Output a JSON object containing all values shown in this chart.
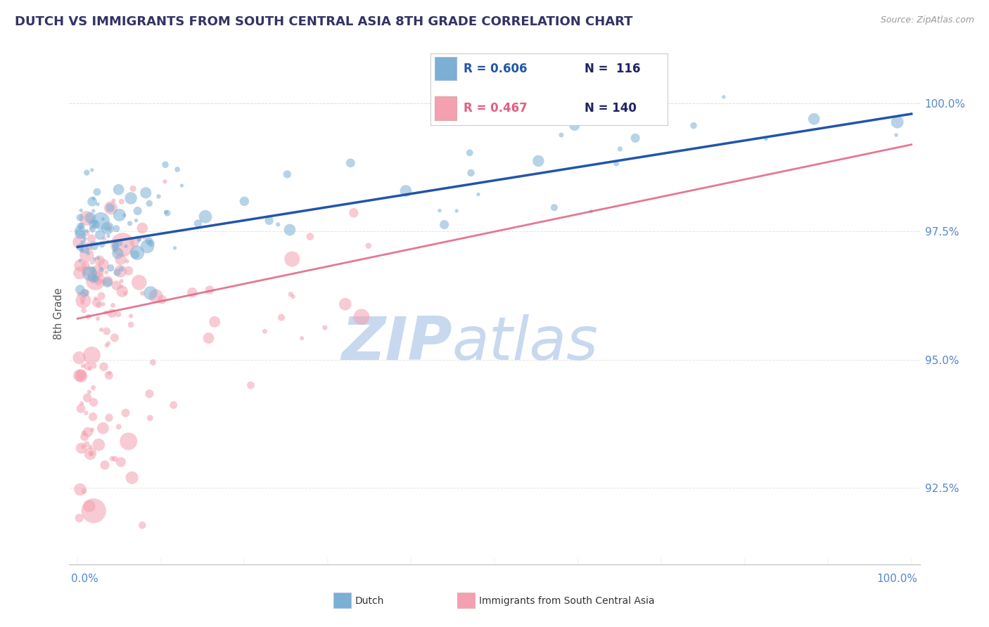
{
  "title": "DUTCH VS IMMIGRANTS FROM SOUTH CENTRAL ASIA 8TH GRADE CORRELATION CHART",
  "source": "Source: ZipAtlas.com",
  "ylabel": "8th Grade",
  "watermark_part1": "ZIP",
  "watermark_part2": "atlas",
  "dutch_R": "0.606",
  "dutch_N": "116",
  "immigrants_R": "0.467",
  "immigrants_N": "140",
  "dutch_color": "#7BAFD4",
  "immigrants_color": "#F4A0B0",
  "dutch_line_color": "#2255AA",
  "immigrants_line_color": "#E06080",
  "background_color": "#FFFFFF",
  "axis_label_color": "#5588CC",
  "ylabel_color": "#555555",
  "title_color": "#333366",
  "source_color": "#999999",
  "grid_color": "#DDDDDD",
  "legend_border_color": "#CCCCCC",
  "xmin": 0.0,
  "xmax": 100.0,
  "ymin": 91.0,
  "ymax": 100.8,
  "ytick_vals": [
    92.5,
    95.0,
    97.5,
    100.0
  ],
  "dutch_seed": 10,
  "immigrants_seed": 20
}
